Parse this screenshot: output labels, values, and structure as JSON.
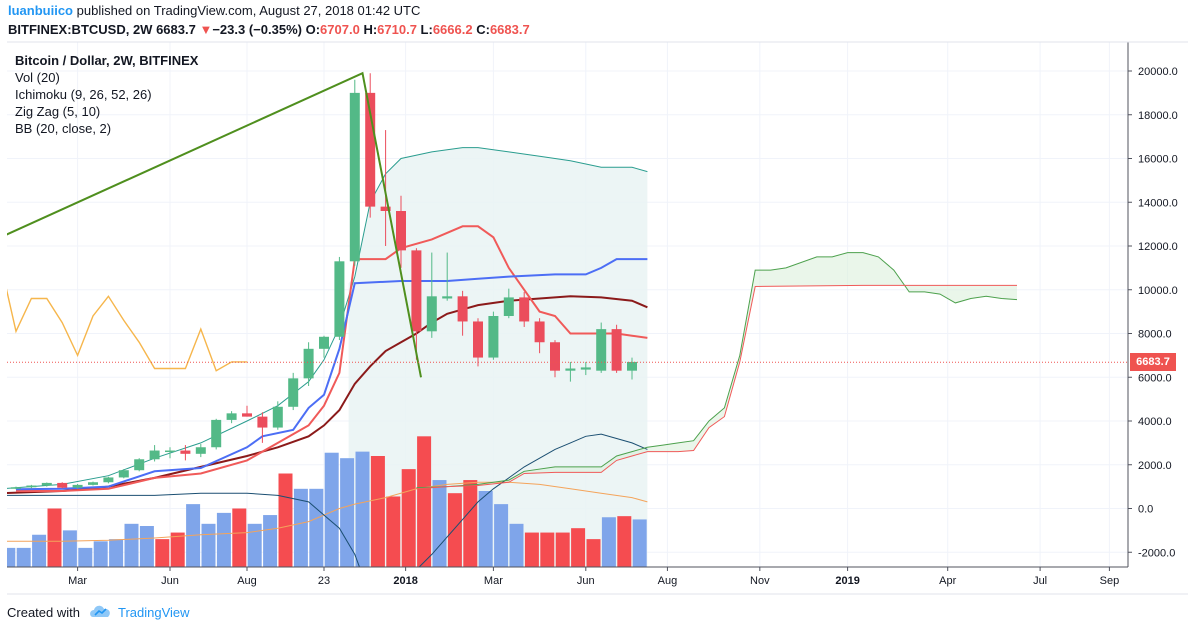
{
  "header": {
    "author": "luanbuiico",
    "published_text": "published on TradingView.com, August 27, 2018 01:42 UTC"
  },
  "quote": {
    "symbol_interval": "BITFINEX:BTCUSD, 2W",
    "last": "6683.7",
    "arrow": "▼",
    "change": "−23.3 (−0.35%)",
    "o_label": "O:",
    "o_value": "6707.0",
    "h_label": "H:",
    "h_value": "6710.7",
    "l_label": "L:",
    "l_value": "6666.2",
    "c_label": "C:",
    "c_value": "6683.7"
  },
  "legend": {
    "title": "Bitcoin / Dollar, 2W, BITFINEX",
    "items": [
      "Vol (20)",
      "Ichimoku (9, 26, 52, 26)",
      "Zig Zag (5, 10)",
      "BB (20, close, 2)"
    ]
  },
  "price_tag": "6683.7",
  "footer": {
    "created_with": "Created with",
    "brand": "TradingView"
  },
  "colors": {
    "up": "#53b987",
    "down": "#eb4d5c",
    "vol_up": "#7fa5ea",
    "vol_down": "#f54c50",
    "zigzag": "#4f8f1e",
    "conversion": "#4c6ef5",
    "base": "#f05a59",
    "lagging": "#3d8e3d",
    "span_a": "#4da14d",
    "span_b": "#f05a59",
    "bb_basis": "#8b1a1a",
    "bb_upper": "#2a9d8f",
    "bb_lower": "#2a9d8f",
    "vol_ma": "#f4a45b",
    "zone": "#e9f3f3"
  },
  "chart_data": {
    "type": "candlestick",
    "title": "Bitcoin / Dollar, 2W, BITFINEX",
    "ylim": [
      -2800,
      21000
    ],
    "y_ticks": [
      "20000.0",
      "18000.0",
      "16000.0",
      "14000.0",
      "12000.0",
      "10000.0",
      "8000.0",
      "6000.0",
      "4000.0",
      "2000.0",
      "0.0",
      "-2000.0"
    ],
    "y_tick_values": [
      20000,
      18000,
      16000,
      14000,
      12000,
      10000,
      8000,
      6000,
      4000,
      2000,
      0,
      -2000
    ],
    "x_ticks": [
      "Mar",
      "Jun",
      "Aug",
      "23",
      "2018",
      "Mar",
      "Jun",
      "Aug",
      "Nov",
      "2019",
      "Apr",
      "Jul",
      "Sep"
    ],
    "x_tick_bold": [
      "2018",
      "2019"
    ],
    "candles": [
      {
        "o": 950,
        "h": 1000,
        "l": 880,
        "c": 970
      },
      {
        "o": 970,
        "h": 1080,
        "l": 920,
        "c": 1050
      },
      {
        "o": 1050,
        "h": 1190,
        "l": 1000,
        "c": 1170
      },
      {
        "o": 1170,
        "h": 1200,
        "l": 920,
        "c": 950
      },
      {
        "o": 950,
        "h": 1120,
        "l": 900,
        "c": 1080
      },
      {
        "o": 1080,
        "h": 1230,
        "l": 1050,
        "c": 1200
      },
      {
        "o": 1200,
        "h": 1450,
        "l": 1150,
        "c": 1420
      },
      {
        "o": 1420,
        "h": 1800,
        "l": 1380,
        "c": 1750
      },
      {
        "o": 1750,
        "h": 2300,
        "l": 1700,
        "c": 2250
      },
      {
        "o": 2250,
        "h": 2900,
        "l": 2150,
        "c": 2650
      },
      {
        "o": 2650,
        "h": 2800,
        "l": 2300,
        "c": 2650
      },
      {
        "o": 2650,
        "h": 2900,
        "l": 2200,
        "c": 2500
      },
      {
        "o": 2500,
        "h": 2950,
        "l": 2350,
        "c": 2800
      },
      {
        "o": 2800,
        "h": 4100,
        "l": 2700,
        "c": 4050
      },
      {
        "o": 4050,
        "h": 4450,
        "l": 3900,
        "c": 4350
      },
      {
        "o": 4350,
        "h": 4700,
        "l": 4200,
        "c": 4200
      },
      {
        "o": 4200,
        "h": 4400,
        "l": 3000,
        "c": 3700
      },
      {
        "o": 3700,
        "h": 4900,
        "l": 3600,
        "c": 4650
      },
      {
        "o": 4650,
        "h": 6200,
        "l": 4500,
        "c": 5950
      },
      {
        "o": 5950,
        "h": 7600,
        "l": 5600,
        "c": 7300
      },
      {
        "o": 7300,
        "h": 7900,
        "l": 6900,
        "c": 7850
      },
      {
        "o": 7850,
        "h": 11500,
        "l": 7700,
        "c": 11300
      },
      {
        "o": 11300,
        "h": 19600,
        "l": 11100,
        "c": 19000
      },
      {
        "o": 19000,
        "h": 19900,
        "l": 13300,
        "c": 13800
      },
      {
        "o": 13800,
        "h": 17300,
        "l": 12000,
        "c": 13600
      },
      {
        "o": 13600,
        "h": 14300,
        "l": 11000,
        "c": 11800
      },
      {
        "o": 11800,
        "h": 11900,
        "l": 6800,
        "c": 8100
      },
      {
        "o": 8100,
        "h": 11700,
        "l": 7800,
        "c": 9700
      },
      {
        "o": 9600,
        "h": 11700,
        "l": 9500,
        "c": 9700
      },
      {
        "o": 9700,
        "h": 9950,
        "l": 7900,
        "c": 8550
      },
      {
        "o": 8550,
        "h": 8700,
        "l": 6500,
        "c": 6900
      },
      {
        "o": 6900,
        "h": 9000,
        "l": 6800,
        "c": 8800
      },
      {
        "o": 8800,
        "h": 10050,
        "l": 8700,
        "c": 9650
      },
      {
        "o": 9650,
        "h": 9900,
        "l": 8300,
        "c": 8550
      },
      {
        "o": 8550,
        "h": 8700,
        "l": 7100,
        "c": 7600
      },
      {
        "o": 7600,
        "h": 7700,
        "l": 6000,
        "c": 6300
      },
      {
        "o": 6300,
        "h": 6700,
        "l": 5800,
        "c": 6400
      },
      {
        "o": 6350,
        "h": 6700,
        "l": 6100,
        "c": 6450
      },
      {
        "o": 6300,
        "h": 8500,
        "l": 6200,
        "c": 8200
      },
      {
        "o": 8200,
        "h": 8400,
        "l": 6200,
        "c": 6300
      },
      {
        "o": 6300,
        "h": 6900,
        "l": 5900,
        "c": 6700
      }
    ],
    "volume_display": [
      {
        "v": -1800,
        "up": true
      },
      {
        "v": -1800,
        "up": true
      },
      {
        "v": -1200,
        "up": true
      },
      {
        "v": 0,
        "up": false
      },
      {
        "v": -1000,
        "up": true
      },
      {
        "v": -1800,
        "up": true
      },
      {
        "v": -1500,
        "up": true
      },
      {
        "v": -1400,
        "up": true
      },
      {
        "v": -700,
        "up": true
      },
      {
        "v": -800,
        "up": true
      },
      {
        "v": -1400,
        "up": false
      },
      {
        "v": -1100,
        "up": false
      },
      {
        "v": 200,
        "up": true
      },
      {
        "v": -700,
        "up": true
      },
      {
        "v": -200,
        "up": true
      },
      {
        "v": 0,
        "up": false
      },
      {
        "v": -700,
        "up": true
      },
      {
        "v": -300,
        "up": true
      },
      {
        "v": 1600,
        "up": false
      },
      {
        "v": 900,
        "up": true
      },
      {
        "v": 900,
        "up": true
      },
      {
        "v": 2550,
        "up": true
      },
      {
        "v": 2300,
        "up": true
      },
      {
        "v": 2600,
        "up": true
      },
      {
        "v": 2400,
        "up": false
      },
      {
        "v": 550,
        "up": false
      },
      {
        "v": 1800,
        "up": false
      },
      {
        "v": 3300,
        "up": false
      },
      {
        "v": 1300,
        "up": true
      },
      {
        "v": 700,
        "up": false
      },
      {
        "v": 1300,
        "up": false
      },
      {
        "v": 800,
        "up": true
      },
      {
        "v": 200,
        "up": true
      },
      {
        "v": -700,
        "up": true
      },
      {
        "v": -1100,
        "up": false
      },
      {
        "v": -1100,
        "up": false
      },
      {
        "v": -1100,
        "up": false
      },
      {
        "v": -900,
        "up": false
      },
      {
        "v": -1400,
        "up": false
      },
      {
        "v": -400,
        "up": true
      },
      {
        "v": -350,
        "up": false
      },
      {
        "v": -500,
        "up": true
      }
    ],
    "zigzag": [
      {
        "i": -1,
        "v": 12400
      },
      {
        "i": 22.5,
        "v": 19900
      },
      {
        "i": 26.3,
        "v": 6000
      }
    ],
    "conversion_line": [
      [
        0,
        880
      ],
      [
        3,
        900
      ],
      [
        6,
        1000
      ],
      [
        9,
        1700
      ],
      [
        12,
        1850
      ],
      [
        15,
        2800
      ],
      [
        16,
        3300
      ],
      [
        18,
        3600
      ],
      [
        19,
        4600
      ],
      [
        20,
        5200
      ],
      [
        21,
        7300
      ],
      [
        22,
        10300
      ],
      [
        25,
        10400
      ],
      [
        28,
        10400
      ],
      [
        30,
        10500
      ],
      [
        32,
        10600
      ],
      [
        35,
        10700
      ],
      [
        37,
        10700
      ],
      [
        38,
        11000
      ],
      [
        39,
        11400
      ],
      [
        41,
        11400
      ]
    ],
    "base_line": [
      [
        0,
        800
      ],
      [
        3,
        800
      ],
      [
        6,
        900
      ],
      [
        9,
        1400
      ],
      [
        12,
        1600
      ],
      [
        15,
        2200
      ],
      [
        18,
        3400
      ],
      [
        19,
        3800
      ],
      [
        20,
        4700
      ],
      [
        21,
        6200
      ],
      [
        22,
        11400
      ],
      [
        24,
        11400
      ],
      [
        25,
        11900
      ],
      [
        27,
        12300
      ],
      [
        29,
        12900
      ],
      [
        30,
        12900
      ],
      [
        31,
        12400
      ],
      [
        32,
        11000
      ],
      [
        33,
        10000
      ],
      [
        34,
        9000
      ],
      [
        35,
        8800
      ],
      [
        36,
        8000
      ],
      [
        39,
        8000
      ],
      [
        40,
        7900
      ],
      [
        41,
        7800
      ]
    ],
    "lagging_span": [
      [
        -1,
        11200
      ],
      [
        0,
        8100
      ],
      [
        1,
        9600
      ],
      [
        2,
        9600
      ],
      [
        3,
        8500
      ],
      [
        4,
        7000
      ],
      [
        5,
        8800
      ],
      [
        6,
        9700
      ],
      [
        7,
        8600
      ],
      [
        8,
        7600
      ],
      [
        9,
        6400
      ],
      [
        10,
        6400
      ],
      [
        11,
        6400
      ],
      [
        12,
        8200
      ],
      [
        13,
        6300
      ],
      [
        14,
        6700
      ],
      [
        15,
        6700
      ]
    ],
    "span_a": [
      [
        26,
        950
      ],
      [
        28,
        1000
      ],
      [
        30,
        1100
      ],
      [
        32,
        1300
      ],
      [
        33,
        1700
      ],
      [
        35,
        1900
      ],
      [
        38,
        1900
      ],
      [
        39,
        2400
      ],
      [
        40,
        2600
      ],
      [
        41,
        2800
      ],
      [
        42,
        2900
      ],
      [
        43,
        3000
      ],
      [
        44,
        3100
      ],
      [
        45,
        4000
      ],
      [
        46,
        4600
      ],
      [
        47,
        7000
      ],
      [
        48,
        10900
      ],
      [
        49,
        10900
      ],
      [
        50,
        11000
      ],
      [
        52,
        11500
      ],
      [
        53,
        11500
      ],
      [
        54,
        11700
      ],
      [
        55,
        11700
      ],
      [
        56,
        11500
      ],
      [
        57,
        10900
      ],
      [
        58,
        9900
      ],
      [
        59,
        9900
      ],
      [
        60,
        9800
      ],
      [
        61,
        9400
      ],
      [
        62,
        9600
      ],
      [
        63,
        9700
      ],
      [
        64,
        9600
      ],
      [
        65,
        9550
      ]
    ],
    "span_b": [
      [
        26,
        900
      ],
      [
        28,
        1000
      ],
      [
        30,
        1050
      ],
      [
        32,
        1200
      ],
      [
        33,
        1600
      ],
      [
        35,
        1650
      ],
      [
        38,
        1650
      ],
      [
        39,
        2200
      ],
      [
        40,
        2400
      ],
      [
        41,
        2600
      ],
      [
        43,
        2600
      ],
      [
        44,
        2650
      ],
      [
        45,
        3700
      ],
      [
        46,
        4200
      ],
      [
        47,
        6700
      ],
      [
        48,
        10150
      ],
      [
        55,
        10200
      ],
      [
        65,
        10200
      ]
    ],
    "bb_basis": [
      [
        -1,
        700
      ],
      [
        3,
        800
      ],
      [
        6,
        1000
      ],
      [
        9,
        1400
      ],
      [
        12,
        1900
      ],
      [
        15,
        2400
      ],
      [
        17,
        2800
      ],
      [
        19,
        3300
      ],
      [
        20,
        3800
      ],
      [
        21,
        4500
      ],
      [
        22,
        5700
      ],
      [
        23,
        6500
      ],
      [
        24,
        7200
      ],
      [
        25,
        7600
      ],
      [
        26,
        8000
      ],
      [
        27,
        8500
      ],
      [
        28,
        8900
      ],
      [
        29,
        9100
      ],
      [
        30,
        9300
      ],
      [
        32,
        9500
      ],
      [
        34,
        9600
      ],
      [
        36,
        9700
      ],
      [
        38,
        9650
      ],
      [
        40,
        9500
      ],
      [
        41,
        9200
      ]
    ],
    "bb_upper": [
      [
        -1,
        900
      ],
      [
        3,
        1100
      ],
      [
        6,
        1500
      ],
      [
        9,
        2300
      ],
      [
        12,
        3000
      ],
      [
        15,
        4000
      ],
      [
        17,
        4700
      ],
      [
        19,
        5800
      ],
      [
        20,
        6800
      ],
      [
        21,
        8300
      ],
      [
        22,
        10600
      ],
      [
        23,
        14000
      ],
      [
        24,
        15300
      ],
      [
        25,
        16000
      ],
      [
        27,
        16300
      ],
      [
        29,
        16500
      ],
      [
        30,
        16500
      ],
      [
        32,
        16300
      ],
      [
        34,
        16100
      ],
      [
        36,
        15900
      ],
      [
        38,
        15600
      ],
      [
        40,
        15600
      ],
      [
        41,
        15400
      ]
    ],
    "bb_lower": [
      [
        -1,
        600
      ],
      [
        3,
        600
      ],
      [
        6,
        600
      ],
      [
        9,
        600
      ],
      [
        12,
        700
      ],
      [
        15,
        700
      ],
      [
        17,
        600
      ],
      [
        19,
        300
      ],
      [
        20,
        -300
      ],
      [
        21,
        -900
      ],
      [
        22,
        -2100
      ],
      [
        23,
        -4000
      ],
      [
        26,
        -2800
      ],
      [
        27,
        -2100
      ],
      [
        28,
        -1300
      ],
      [
        29,
        -500
      ],
      [
        30,
        300
      ],
      [
        31,
        900
      ],
      [
        32,
        1400
      ],
      [
        33,
        1900
      ],
      [
        34,
        2300
      ],
      [
        35,
        2700
      ],
      [
        36,
        3000
      ],
      [
        37,
        3300
      ],
      [
        38,
        3400
      ],
      [
        39,
        3200
      ],
      [
        40,
        3000
      ],
      [
        41,
        2700
      ]
    ],
    "vol_ma": [
      [
        -1,
        -1500
      ],
      [
        3,
        -1500
      ],
      [
        6,
        -1450
      ],
      [
        9,
        -1350
      ],
      [
        12,
        -1200
      ],
      [
        15,
        -1100
      ],
      [
        17,
        -900
      ],
      [
        19,
        -600
      ],
      [
        20,
        -300
      ],
      [
        21,
        0
      ],
      [
        22,
        200
      ],
      [
        24,
        500
      ],
      [
        26,
        900
      ],
      [
        28,
        1100
      ],
      [
        30,
        1200
      ],
      [
        32,
        1200
      ],
      [
        34,
        1100
      ],
      [
        36,
        900
      ],
      [
        38,
        700
      ],
      [
        40,
        500
      ],
      [
        41,
        300
      ]
    ],
    "price_line_value": 6683.7
  }
}
